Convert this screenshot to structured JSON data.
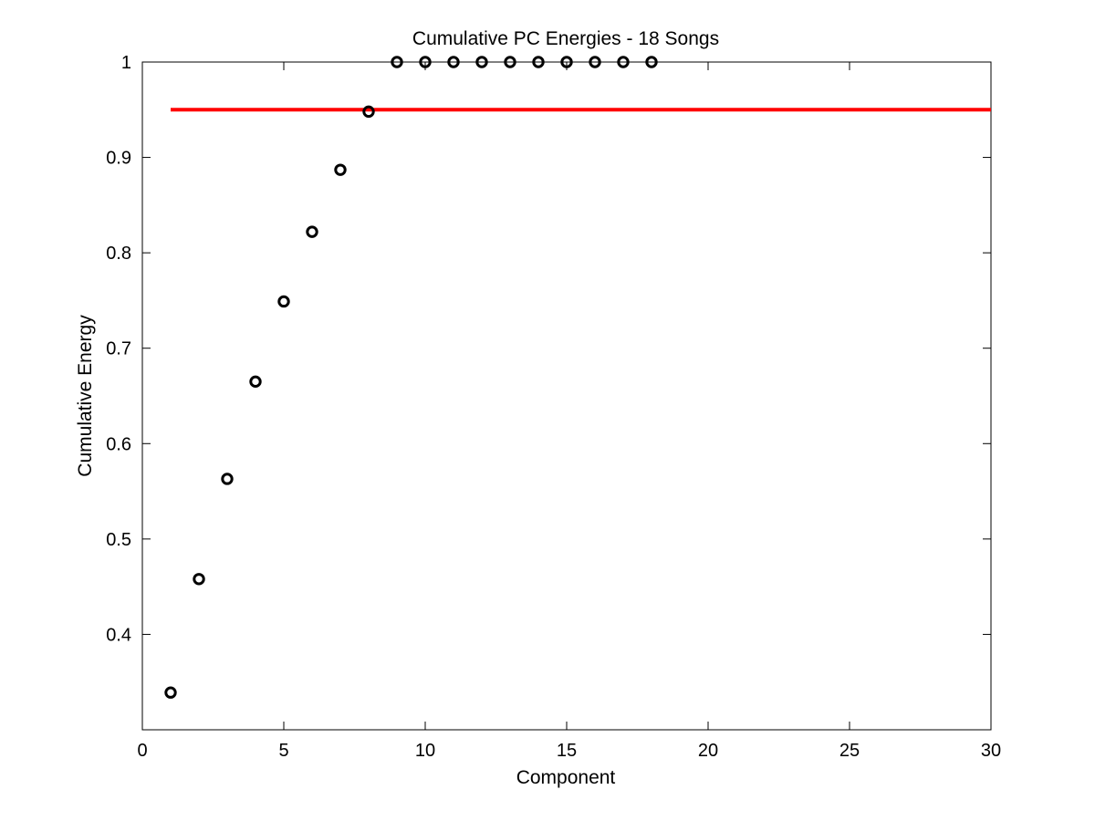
{
  "chart_data": {
    "type": "scatter",
    "title": "Cumulative PC Energies - 18 Songs",
    "xlabel": "Component",
    "ylabel": "Cumulative Energy",
    "xlim": [
      0,
      30
    ],
    "ylim": [
      0.3,
      1.0
    ],
    "xticks": [
      0,
      5,
      10,
      15,
      20,
      25,
      30
    ],
    "yticks": [
      0.4,
      0.5,
      0.6,
      0.7,
      0.8,
      0.9,
      1
    ],
    "grid": false,
    "legend": "none",
    "series": [
      {
        "marker": "circle-open",
        "color": "#000000",
        "x": [
          1,
          2,
          3,
          4,
          5,
          6,
          7,
          8,
          9,
          10,
          11,
          12,
          13,
          14,
          15,
          16,
          17,
          18
        ],
        "y": [
          0.339,
          0.458,
          0.563,
          0.665,
          0.749,
          0.822,
          0.887,
          0.948,
          1.0,
          1.0,
          1.0,
          1.0,
          1.0,
          1.0,
          1.0,
          1.0,
          1.0,
          1.0
        ]
      }
    ],
    "reference_lines": [
      {
        "orientation": "horizontal",
        "y": 0.95,
        "x_start": 1,
        "x_end": 30,
        "color": "#ff0000"
      }
    ]
  }
}
